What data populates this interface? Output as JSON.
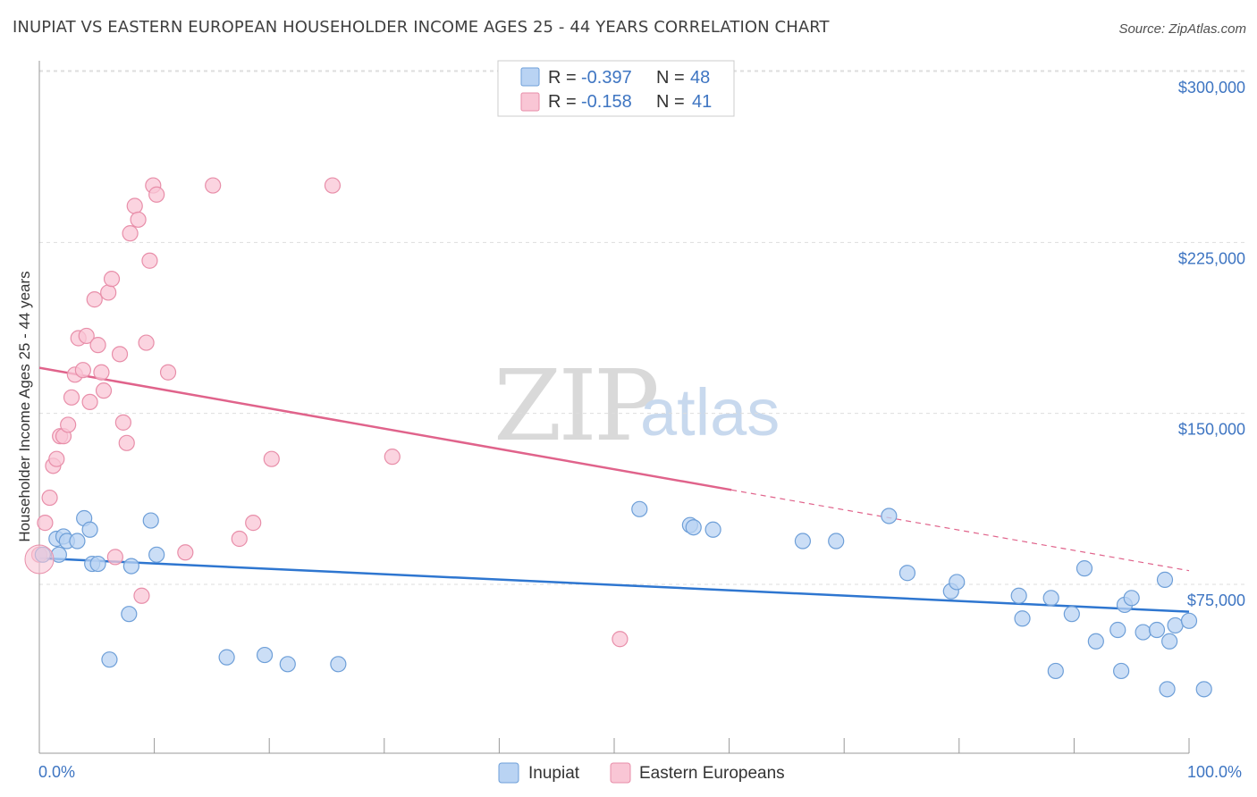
{
  "title": "INUPIAT VS EASTERN EUROPEAN HOUSEHOLDER INCOME AGES 25 - 44 YEARS CORRELATION CHART",
  "source": "Source: ZipAtlas.com",
  "watermark": {
    "zip": "ZIP",
    "atlas": "atlas"
  },
  "colors": {
    "inupiat_fill": "#b9d3f3",
    "inupiat_stroke": "#6e9fd8",
    "inupiat_line": "#2e76d0",
    "eastern_fill": "#f9c6d5",
    "eastern_stroke": "#e88ea9",
    "eastern_line": "#e0638b",
    "grid": "#dddddd",
    "tick_label": "#3e75c2"
  },
  "legend": {
    "rows": [
      {
        "r_label": "R =",
        "r_value": "-0.397",
        "n_label": "N =",
        "n_value": "48"
      },
      {
        "r_label": "R =",
        "r_value": "-0.158",
        "n_label": "N =",
        "n_value": "41"
      }
    ]
  },
  "bottom_legend": {
    "items": [
      "Inupiat",
      "Eastern Europeans"
    ]
  },
  "chart_data": {
    "type": "scatter",
    "title": "INUPIAT VS EASTERN EUROPEAN HOUSEHOLDER INCOME AGES 25 - 44 YEARS CORRELATION CHART",
    "xlabel": "",
    "ylabel": "Householder Income Ages 25 - 44 years",
    "xlim": [
      0,
      100
    ],
    "ylim": [
      10000,
      310000
    ],
    "x_tick_labels": [
      "0.0%",
      "100.0%"
    ],
    "y_ticks": [
      75000,
      150000,
      225000,
      300000
    ],
    "y_tick_labels": [
      "$75,000",
      "$150,000",
      "$225,000",
      "$300,000"
    ],
    "grid": true,
    "legend_position": "top-center",
    "series": [
      {
        "name": "Inupiat",
        "r": -0.397,
        "n": 48,
        "trend": {
          "x": [
            0,
            100
          ],
          "y": [
            86500,
            63000
          ]
        },
        "points": [
          [
            0.3,
            88000
          ],
          [
            1.5,
            95000
          ],
          [
            1.7,
            88000
          ],
          [
            2.1,
            96000
          ],
          [
            2.4,
            94000
          ],
          [
            3.3,
            94000
          ],
          [
            3.9,
            104000
          ],
          [
            4.4,
            99000
          ],
          [
            4.6,
            84000
          ],
          [
            5.1,
            84000
          ],
          [
            6.1,
            42000
          ],
          [
            7.8,
            62000
          ],
          [
            8.0,
            83000
          ],
          [
            9.7,
            103000
          ],
          [
            10.2,
            88000
          ],
          [
            16.3,
            43000
          ],
          [
            19.6,
            44000
          ],
          [
            21.6,
            40000
          ],
          [
            26.0,
            40000
          ],
          [
            52.2,
            108000
          ],
          [
            56.6,
            101000
          ],
          [
            56.9,
            100000
          ],
          [
            58.6,
            99000
          ],
          [
            66.4,
            94000
          ],
          [
            69.3,
            94000
          ],
          [
            73.9,
            105000
          ],
          [
            75.5,
            80000
          ],
          [
            79.3,
            72000
          ],
          [
            79.8,
            76000
          ],
          [
            85.2,
            70000
          ],
          [
            85.5,
            60000
          ],
          [
            88.0,
            69000
          ],
          [
            88.4,
            37000
          ],
          [
            89.8,
            62000
          ],
          [
            90.9,
            82000
          ],
          [
            91.9,
            50000
          ],
          [
            93.8,
            55000
          ],
          [
            94.1,
            37000
          ],
          [
            94.4,
            66000
          ],
          [
            95.0,
            69000
          ],
          [
            96.0,
            54000
          ],
          [
            97.2,
            55000
          ],
          [
            97.9,
            77000
          ],
          [
            98.3,
            50000
          ],
          [
            98.8,
            57000
          ],
          [
            98.1,
            29000
          ],
          [
            101.3,
            29000
          ],
          [
            100.0,
            59000
          ]
        ]
      },
      {
        "name": "Eastern Europeans",
        "r": -0.158,
        "n": 41,
        "trend": {
          "x": [
            0,
            100
          ],
          "y": [
            170000,
            81000
          ],
          "solid_until_x": 60.2
        },
        "points": [
          [
            0.0,
            88000
          ],
          [
            0.5,
            102000
          ],
          [
            0.9,
            113000
          ],
          [
            1.2,
            127000
          ],
          [
            1.5,
            130000
          ],
          [
            1.8,
            140000
          ],
          [
            2.1,
            140000
          ],
          [
            2.5,
            145000
          ],
          [
            2.8,
            157000
          ],
          [
            3.1,
            167000
          ],
          [
            3.4,
            183000
          ],
          [
            3.8,
            169000
          ],
          [
            4.1,
            184000
          ],
          [
            4.4,
            155000
          ],
          [
            4.8,
            200000
          ],
          [
            5.1,
            180000
          ],
          [
            5.4,
            168000
          ],
          [
            5.6,
            160000
          ],
          [
            6.0,
            203000
          ],
          [
            6.3,
            209000
          ],
          [
            6.6,
            87000
          ],
          [
            7.0,
            176000
          ],
          [
            7.3,
            146000
          ],
          [
            7.6,
            137000
          ],
          [
            7.9,
            229000
          ],
          [
            8.3,
            241000
          ],
          [
            8.6,
            235000
          ],
          [
            8.9,
            70000
          ],
          [
            9.3,
            181000
          ],
          [
            9.6,
            217000
          ],
          [
            9.9,
            250000
          ],
          [
            10.2,
            246000
          ],
          [
            11.2,
            168000
          ],
          [
            12.7,
            89000
          ],
          [
            15.1,
            250000
          ],
          [
            17.4,
            95000
          ],
          [
            18.6,
            102000
          ],
          [
            20.2,
            130000
          ],
          [
            25.5,
            250000
          ],
          [
            30.7,
            131000
          ],
          [
            50.5,
            51000
          ]
        ]
      }
    ]
  }
}
